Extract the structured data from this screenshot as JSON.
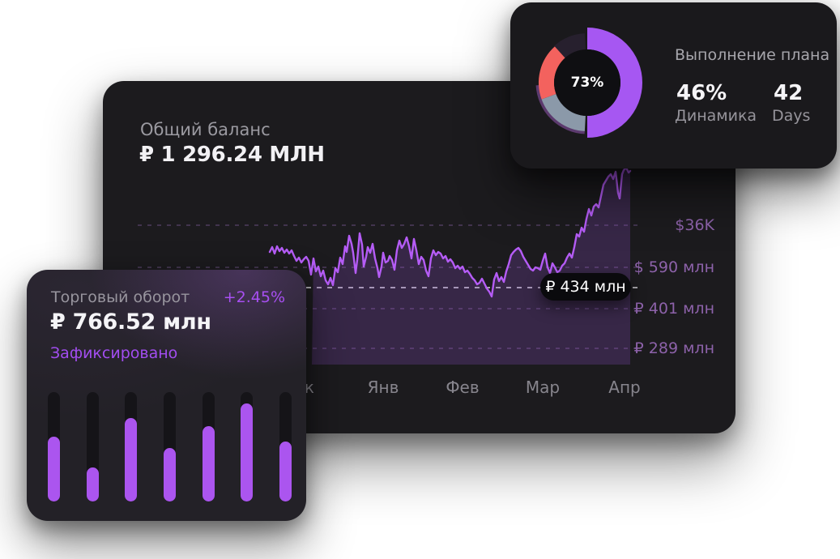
{
  "page": {
    "background": "#ffffff"
  },
  "chart_data": [
    {
      "type": "pie",
      "title": "Выполнение плана",
      "center_value": "73%",
      "slices": [
        {
          "label": "выполнено",
          "color": "#a657f2",
          "deg_span": [
            0,
            180
          ]
        },
        {
          "label": "сегмент-серый",
          "color": "#8b99a9",
          "deg_span": [
            183,
            250
          ]
        },
        {
          "label": "сегмент-красный",
          "color": "#f3625e",
          "deg_span": [
            250,
            318
          ]
        },
        {
          "label": "остаток",
          "color": "#27202e",
          "deg_span": [
            318,
            357
          ]
        }
      ],
      "stats": {
        "Динамика": "46%",
        "Days": "42"
      }
    },
    {
      "type": "line",
      "title": "Общий баланс",
      "current_value": "₽ 434 млн",
      "y_ticks": [
        "$36K",
        "$ 590 млн",
        "₽ 401 млн",
        "₽ 289 млн"
      ],
      "x_ticks": [
        "Дек",
        "Янв",
        "Фев",
        "Мар",
        "Апр"
      ],
      "trend": "volatile sideways band, dip, then strong rally to peak at right edge"
    },
    {
      "type": "bar",
      "title": "Торговый оборот",
      "values_pct": [
        59,
        31,
        76,
        49,
        69,
        90,
        55
      ]
    }
  ],
  "balance_card": {
    "label": "Общий баланс",
    "value": "₽ 1 296.24 МЛН",
    "chart": {
      "type": "line",
      "line_color": "#b55cf6",
      "area_color": "rgba(166,92,235,0.20)",
      "grid_color": "#4f3d5e",
      "current_line_color": "#d6d4da",
      "grid_x1": 170,
      "grid_x2": 790,
      "baseline_y": 450,
      "area_start_x": 385,
      "current_value_y": 355,
      "gridlines": [
        278,
        330,
        381,
        430
      ],
      "y_labels": [
        {
          "text": "$36K",
          "y": 278
        },
        {
          "text": "$ 590 млн",
          "y": 330
        },
        {
          "text": "₽ 401 млн",
          "y": 381
        },
        {
          "text": "₽ 289 млн",
          "y": 430
        }
      ],
      "x_labels": [
        {
          "text": "Дек",
          "x": 368
        },
        {
          "text": "Янв",
          "x": 473
        },
        {
          "text": "Фев",
          "x": 571
        },
        {
          "text": "Мар",
          "x": 670
        },
        {
          "text": "Апр",
          "x": 771
        }
      ],
      "tooltip": {
        "text": "₽ 434 млн"
      },
      "points": [
        [
          333,
          311
        ],
        [
          336,
          305
        ],
        [
          339,
          313
        ],
        [
          342,
          304
        ],
        [
          345,
          310
        ],
        [
          348,
          306
        ],
        [
          351,
          312
        ],
        [
          354,
          308
        ],
        [
          357,
          313
        ],
        [
          360,
          309
        ],
        [
          363,
          316
        ],
        [
          366,
          322
        ],
        [
          369,
          318
        ],
        [
          372,
          324
        ],
        [
          375,
          320
        ],
        [
          378,
          317
        ],
        [
          381,
          322
        ],
        [
          384,
          339
        ],
        [
          387,
          319
        ],
        [
          390,
          335
        ],
        [
          393,
          329
        ],
        [
          396,
          341
        ],
        [
          399,
          334
        ],
        [
          402,
          346
        ],
        [
          405,
          351
        ],
        [
          408,
          343
        ],
        [
          411,
          352
        ],
        [
          414,
          331
        ],
        [
          417,
          336
        ],
        [
          420,
          318
        ],
        [
          423,
          326
        ],
        [
          426,
          304
        ],
        [
          428,
          311
        ],
        [
          431,
          291
        ],
        [
          434,
          301
        ],
        [
          436,
          312
        ],
        [
          439,
          337
        ],
        [
          441,
          321
        ],
        [
          444,
          288
        ],
        [
          447,
          302
        ],
        [
          449,
          329
        ],
        [
          452,
          317
        ],
        [
          454,
          305
        ],
        [
          457,
          312
        ],
        [
          460,
          301
        ],
        [
          463,
          319
        ],
        [
          466,
          331
        ],
        [
          468,
          342
        ],
        [
          471,
          329
        ],
        [
          473,
          312
        ],
        [
          476,
          324
        ],
        [
          479,
          322
        ],
        [
          481,
          316
        ],
        [
          484,
          321
        ],
        [
          487,
          333
        ],
        [
          490,
          309
        ],
        [
          493,
          297
        ],
        [
          496,
          306
        ],
        [
          499,
          301
        ],
        [
          502,
          293
        ],
        [
          505,
          304
        ],
        [
          508,
          319
        ],
        [
          511,
          295
        ],
        [
          514,
          309
        ],
        [
          517,
          326
        ],
        [
          520,
          317
        ],
        [
          523,
          321
        ],
        [
          526,
          334
        ],
        [
          529,
          341
        ],
        [
          532,
          319
        ],
        [
          535,
          309
        ],
        [
          538,
          315
        ],
        [
          541,
          311
        ],
        [
          544,
          313
        ],
        [
          547,
          319
        ],
        [
          550,
          316
        ],
        [
          553,
          323
        ],
        [
          556,
          320
        ],
        [
          559,
          324
        ],
        [
          562,
          331
        ],
        [
          565,
          328
        ],
        [
          568,
          332
        ],
        [
          571,
          329
        ],
        [
          574,
          336
        ],
        [
          577,
          334
        ],
        [
          580,
          338
        ],
        [
          583,
          343
        ],
        [
          586,
          346
        ],
        [
          589,
          351
        ],
        [
          592,
          349
        ],
        [
          595,
          344
        ],
        [
          598,
          350
        ],
        [
          601,
          356
        ],
        [
          604,
          360
        ],
        [
          607,
          366
        ],
        [
          610,
          345
        ],
        [
          613,
          337
        ],
        [
          616,
          347
        ],
        [
          619,
          342
        ],
        [
          622,
          348
        ],
        [
          625,
          335
        ],
        [
          628,
          326
        ],
        [
          631,
          315
        ],
        [
          634,
          311
        ],
        [
          637,
          308
        ],
        [
          640,
          306
        ],
        [
          643,
          310
        ],
        [
          646,
          317
        ],
        [
          649,
          322
        ],
        [
          652,
          327
        ],
        [
          655,
          332
        ],
        [
          658,
          334
        ],
        [
          661,
          330
        ],
        [
          664,
          331
        ],
        [
          667,
          333
        ],
        [
          670,
          322
        ],
        [
          673,
          313
        ],
        [
          676,
          330
        ],
        [
          679,
          337
        ],
        [
          682,
          325
        ],
        [
          685,
          330
        ],
        [
          688,
          336
        ],
        [
          691,
          334
        ],
        [
          694,
          328
        ],
        [
          697,
          325
        ],
        [
          700,
          318
        ],
        [
          703,
          313
        ],
        [
          706,
          318
        ],
        [
          709,
          305
        ],
        [
          712,
          289
        ],
        [
          715,
          292
        ],
        [
          718,
          281
        ],
        [
          721,
          286
        ],
        [
          724,
          270
        ],
        [
          727,
          258
        ],
        [
          730,
          266
        ],
        [
          733,
          255
        ],
        [
          736,
          252
        ],
        [
          739,
          256
        ],
        [
          742,
          242
        ],
        [
          745,
          228
        ],
        [
          748,
          223
        ],
        [
          751,
          218
        ],
        [
          754,
          215
        ],
        [
          757,
          221
        ],
        [
          760,
          212
        ],
        [
          763,
          238
        ],
        [
          765,
          245
        ],
        [
          768,
          215
        ],
        [
          770,
          210
        ],
        [
          773,
          207
        ],
        [
          776,
          213
        ],
        [
          778,
          211
        ]
      ]
    }
  },
  "plan_card": {
    "title": "Выполнение плана",
    "donut": {
      "center_label": "73%",
      "disc_color": "#0f0f12",
      "segments": [
        {
          "name": "underlay-arc",
          "color": "#5c3a6e",
          "start": 183,
          "end": 267,
          "r": 61,
          "w": 5
        },
        {
          "name": "remainder-arc",
          "color": "#27202e",
          "start": 318,
          "end": 357,
          "r": 51,
          "w": 20
        },
        {
          "name": "slate-arc",
          "color": "#8b99a9",
          "start": 183,
          "end": 250,
          "r": 50.5,
          "w": 19
        },
        {
          "name": "red-arc",
          "color": "#f3625e",
          "start": 250,
          "end": 318,
          "r": 50.5,
          "w": 19
        },
        {
          "name": "completed-arc",
          "color": "#a657f2",
          "start": 0,
          "end": 180,
          "r": 54.5,
          "w": 27
        }
      ]
    },
    "stats": [
      {
        "value": "46%",
        "label": "Динамика"
      },
      {
        "value": "42",
        "label": "Days"
      }
    ]
  },
  "turnover_card": {
    "title": "Торговый оборот",
    "change": "+2.45%",
    "value": "₽ 766.52 млн",
    "status": "Зафиксировано",
    "bar_color": "#ab55ef",
    "track_color": "#151418",
    "bars_pct": [
      59,
      31,
      76,
      49,
      69,
      90,
      55
    ]
  }
}
